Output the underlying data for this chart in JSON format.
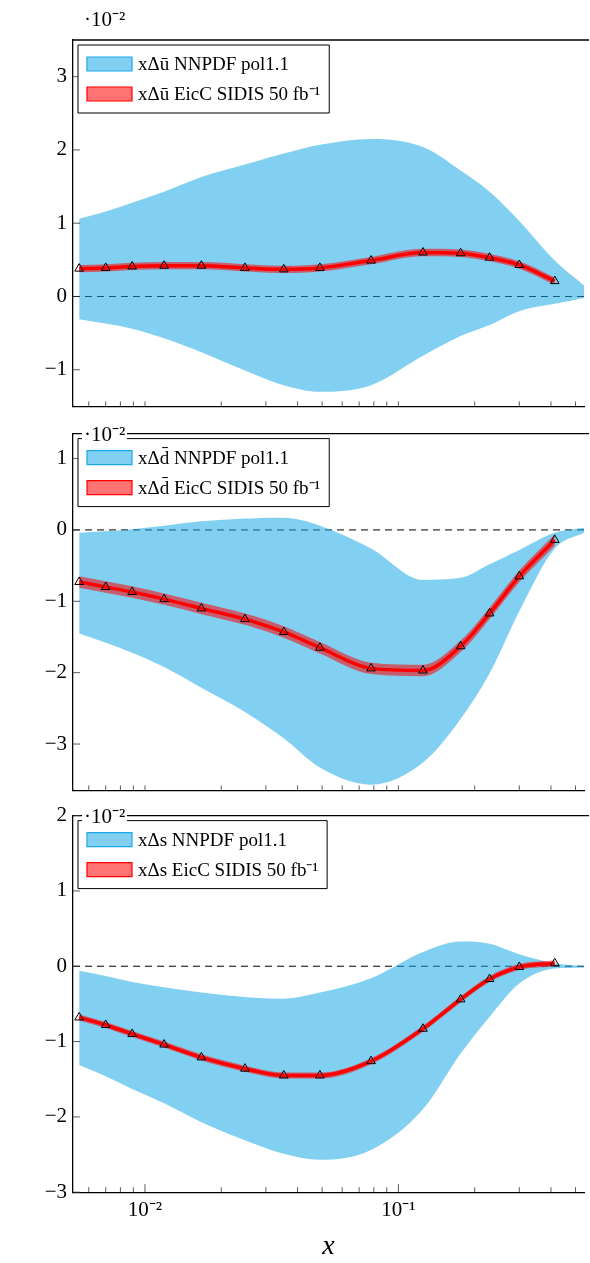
{
  "chart_data": [
    {
      "type": "line",
      "log": "x",
      "legend": "top left",
      "marker": "triangle",
      "tick_labels": "y",
      "annotations": [
        "·10⁻²"
      ],
      "xlim": [
        0.0052,
        0.54
      ],
      "ylim": [
        -1.5,
        3.5
      ],
      "yticks": [
        -1,
        0,
        1,
        2,
        3
      ],
      "xticks": [
        {
          "value": 0.006,
          "label": null
        },
        {
          "value": 0.007,
          "label": null
        },
        {
          "value": 0.008,
          "label": null
        },
        {
          "value": 0.009,
          "label": null
        },
        {
          "value": 0.01,
          "label": null
        },
        {
          "value": 0.02,
          "label": null
        },
        {
          "value": 0.03,
          "label": null
        },
        {
          "value": 0.04,
          "label": null
        },
        {
          "value": 0.05,
          "label": null
        },
        {
          "value": 0.06,
          "label": null
        },
        {
          "value": 0.07,
          "label": null
        },
        {
          "value": 0.08,
          "label": null
        },
        {
          "value": 0.09,
          "label": null
        },
        {
          "value": 0.1,
          "label": null
        },
        {
          "value": 0.2,
          "label": null
        },
        {
          "value": 0.3,
          "label": null
        },
        {
          "value": 0.4,
          "label": null
        },
        {
          "value": 0.5,
          "label": null
        }
      ],
      "ref_lines": [
        {
          "axis": "y",
          "value": 0,
          "color": "#000000",
          "line_style": "dashed"
        }
      ],
      "series": [
        {
          "name": "xΔū NNPDF pol1.1",
          "color": "#1ba9e6",
          "x": [
            0.0055,
            0.007,
            0.0089,
            0.0119,
            0.0167,
            0.0248,
            0.0353,
            0.049,
            0.078,
            0.125,
            0.176,
            0.229,
            0.3,
            0.414,
            0.54
          ],
          "values": [
            null,
            null,
            null,
            null,
            null,
            null,
            null,
            null,
            null,
            null,
            null,
            null,
            null,
            null,
            null
          ],
          "lower": [
            -0.31,
            -0.37,
            -0.44,
            -0.57,
            -0.76,
            -1.01,
            -1.21,
            -1.3,
            -1.21,
            -0.81,
            -0.54,
            -0.39,
            -0.2,
            -0.1,
            -0.02
          ],
          "upper": [
            1.06,
            1.16,
            1.28,
            1.43,
            1.63,
            1.8,
            1.95,
            2.07,
            2.15,
            2.04,
            1.72,
            1.43,
            1.03,
            0.49,
            0.15
          ]
        },
        {
          "name": "xΔū EicC SIDIS 50 fb⁻¹",
          "color": "#ff0000",
          "x": [
            0.0055,
            0.007,
            0.0089,
            0.0119,
            0.0167,
            0.0248,
            0.0353,
            0.049,
            0.078,
            0.125,
            0.176,
            0.229,
            0.3,
            0.414
          ],
          "values": [
            0.38,
            0.39,
            0.41,
            0.42,
            0.42,
            0.39,
            0.37,
            0.39,
            0.49,
            0.6,
            0.59,
            0.53,
            0.43,
            0.21
          ],
          "lower": [
            0.33,
            0.34,
            0.36,
            0.37,
            0.37,
            0.34,
            0.32,
            0.34,
            0.44,
            0.55,
            0.54,
            0.48,
            0.38,
            0.16
          ],
          "upper": [
            0.43,
            0.44,
            0.46,
            0.47,
            0.47,
            0.44,
            0.42,
            0.44,
            0.54,
            0.65,
            0.64,
            0.58,
            0.48,
            0.26
          ]
        }
      ]
    },
    {
      "type": "line",
      "log": "x",
      "legend": "top left",
      "marker": "triangle",
      "tick_labels": "y",
      "annotations": [
        "·10⁻²"
      ],
      "xlim": [
        0.0052,
        0.54
      ],
      "ylim": [
        -3.65,
        1.35
      ],
      "yticks": [
        -3,
        -2,
        -1,
        0,
        1
      ],
      "xticks": [
        {
          "value": 0.006,
          "label": null
        },
        {
          "value": 0.007,
          "label": null
        },
        {
          "value": 0.008,
          "label": null
        },
        {
          "value": 0.009,
          "label": null
        },
        {
          "value": 0.01,
          "label": null
        },
        {
          "value": 0.02,
          "label": null
        },
        {
          "value": 0.03,
          "label": null
        },
        {
          "value": 0.04,
          "label": null
        },
        {
          "value": 0.05,
          "label": null
        },
        {
          "value": 0.06,
          "label": null
        },
        {
          "value": 0.07,
          "label": null
        },
        {
          "value": 0.08,
          "label": null
        },
        {
          "value": 0.09,
          "label": null
        },
        {
          "value": 0.1,
          "label": null
        },
        {
          "value": 0.2,
          "label": null
        },
        {
          "value": 0.3,
          "label": null
        },
        {
          "value": 0.4,
          "label": null
        },
        {
          "value": 0.5,
          "label": null
        }
      ],
      "ref_lines": [
        {
          "axis": "y",
          "value": 0,
          "color": "#000000",
          "line_style": "dashed"
        }
      ],
      "series": [
        {
          "name": "xΔd̄ NNPDF pol1.1",
          "color": "#1ba9e6",
          "x": [
            0.0055,
            0.007,
            0.0089,
            0.0119,
            0.0167,
            0.0248,
            0.0353,
            0.049,
            0.078,
            0.125,
            0.176,
            0.229,
            0.3,
            0.414,
            0.54
          ],
          "values": [
            null,
            null,
            null,
            null,
            null,
            null,
            null,
            null,
            null,
            null,
            null,
            null,
            null,
            null,
            null
          ],
          "lower": [
            -1.45,
            -1.58,
            -1.72,
            -1.92,
            -2.21,
            -2.55,
            -2.92,
            -3.33,
            -3.57,
            -3.26,
            -2.65,
            -2.01,
            -1.14,
            -0.26,
            -0.04
          ],
          "upper": [
            -0.04,
            -0.02,
            0.01,
            0.06,
            0.12,
            0.16,
            0.17,
            0.06,
            -0.26,
            -0.7,
            -0.67,
            -0.48,
            -0.28,
            -0.04,
            0.03
          ]
        },
        {
          "name": "xΔd̄ EicC SIDIS 50 fb⁻¹",
          "color": "#ff0000",
          "x": [
            0.0055,
            0.007,
            0.0089,
            0.0119,
            0.0167,
            0.0248,
            0.0353,
            0.049,
            0.078,
            0.125,
            0.176,
            0.229,
            0.3,
            0.414
          ],
          "values": [
            -0.73,
            -0.8,
            -0.87,
            -0.97,
            -1.1,
            -1.25,
            -1.43,
            -1.65,
            -1.94,
            -1.97,
            -1.63,
            -1.17,
            -0.65,
            -0.14
          ],
          "lower": [
            -0.81,
            -0.88,
            -0.95,
            -1.05,
            -1.18,
            -1.33,
            -1.51,
            -1.73,
            -2.02,
            -2.05,
            -1.71,
            -1.25,
            -0.73,
            -0.22
          ],
          "upper": [
            -0.65,
            -0.72,
            -0.79,
            -0.89,
            -1.02,
            -1.17,
            -1.35,
            -1.57,
            -1.86,
            -1.89,
            -1.55,
            -1.09,
            -0.57,
            -0.06
          ]
        }
      ]
    },
    {
      "type": "line",
      "log": "x",
      "legend": "top left",
      "marker": "triangle",
      "xlabel": "x",
      "annotations": [
        "·10⁻²"
      ],
      "xlim": [
        0.0052,
        0.54
      ],
      "ylim": [
        -3,
        2
      ],
      "yticks": [
        -3,
        -2,
        -1,
        0,
        1,
        2
      ],
      "xticks": [
        {
          "value": 0.006,
          "label": null
        },
        {
          "value": 0.007,
          "label": null
        },
        {
          "value": 0.008,
          "label": null
        },
        {
          "value": 0.009,
          "label": null
        },
        {
          "value": 0.01,
          "label": "10⁻²"
        },
        {
          "value": 0.02,
          "label": null
        },
        {
          "value": 0.03,
          "label": null
        },
        {
          "value": 0.04,
          "label": null
        },
        {
          "value": 0.05,
          "label": null
        },
        {
          "value": 0.06,
          "label": null
        },
        {
          "value": 0.07,
          "label": null
        },
        {
          "value": 0.08,
          "label": null
        },
        {
          "value": 0.09,
          "label": null
        },
        {
          "value": 0.1,
          "label": "10⁻¹"
        },
        {
          "value": 0.2,
          "label": null
        },
        {
          "value": 0.3,
          "label": null
        },
        {
          "value": 0.4,
          "label": null
        },
        {
          "value": 0.5,
          "label": null
        }
      ],
      "ref_lines": [
        {
          "axis": "y",
          "value": 0,
          "color": "#000000",
          "line_style": "dashed"
        }
      ],
      "series": [
        {
          "name": "xΔs NNPDF pol1.1",
          "color": "#1ba9e6",
          "x": [
            0.0055,
            0.007,
            0.0089,
            0.0119,
            0.0167,
            0.0248,
            0.0353,
            0.049,
            0.078,
            0.125,
            0.176,
            0.229,
            0.3,
            0.414,
            0.54
          ],
          "values": [
            null,
            null,
            null,
            null,
            null,
            null,
            null,
            null,
            null,
            null,
            null,
            null,
            null,
            null,
            null
          ],
          "lower": [
            -1.31,
            -1.46,
            -1.63,
            -1.82,
            -2.07,
            -2.31,
            -2.49,
            -2.57,
            -2.44,
            -1.9,
            -1.16,
            -0.67,
            -0.23,
            -0.03,
            -0.02
          ],
          "upper": [
            -0.06,
            -0.13,
            -0.21,
            -0.28,
            -0.35,
            -0.41,
            -0.43,
            -0.35,
            -0.16,
            0.19,
            0.33,
            0.3,
            0.16,
            0.04,
            0
          ]
        },
        {
          "name": "xΔs EicC SIDIS 50 fb⁻¹",
          "color": "#ff0000",
          "x": [
            0.0055,
            0.007,
            0.0089,
            0.0119,
            0.0167,
            0.0248,
            0.0353,
            0.049,
            0.078,
            0.125,
            0.176,
            0.229,
            0.3,
            0.414
          ],
          "values": [
            -0.68,
            -0.78,
            -0.9,
            -1.04,
            -1.21,
            -1.36,
            -1.45,
            -1.45,
            -1.26,
            -0.83,
            -0.44,
            -0.17,
            -0.01,
            0.04
          ],
          "lower": [
            -0.72,
            -0.82,
            -0.94,
            -1.08,
            -1.25,
            -1.4,
            -1.49,
            -1.49,
            -1.3,
            -0.87,
            -0.48,
            -0.21,
            -0.05,
            0
          ],
          "upper": [
            -0.64,
            -0.74,
            -0.86,
            -1,
            -1.17,
            -1.32,
            -1.41,
            -1.41,
            -1.22,
            -0.79,
            -0.4,
            -0.13,
            0.03,
            0.08
          ]
        }
      ]
    }
  ]
}
